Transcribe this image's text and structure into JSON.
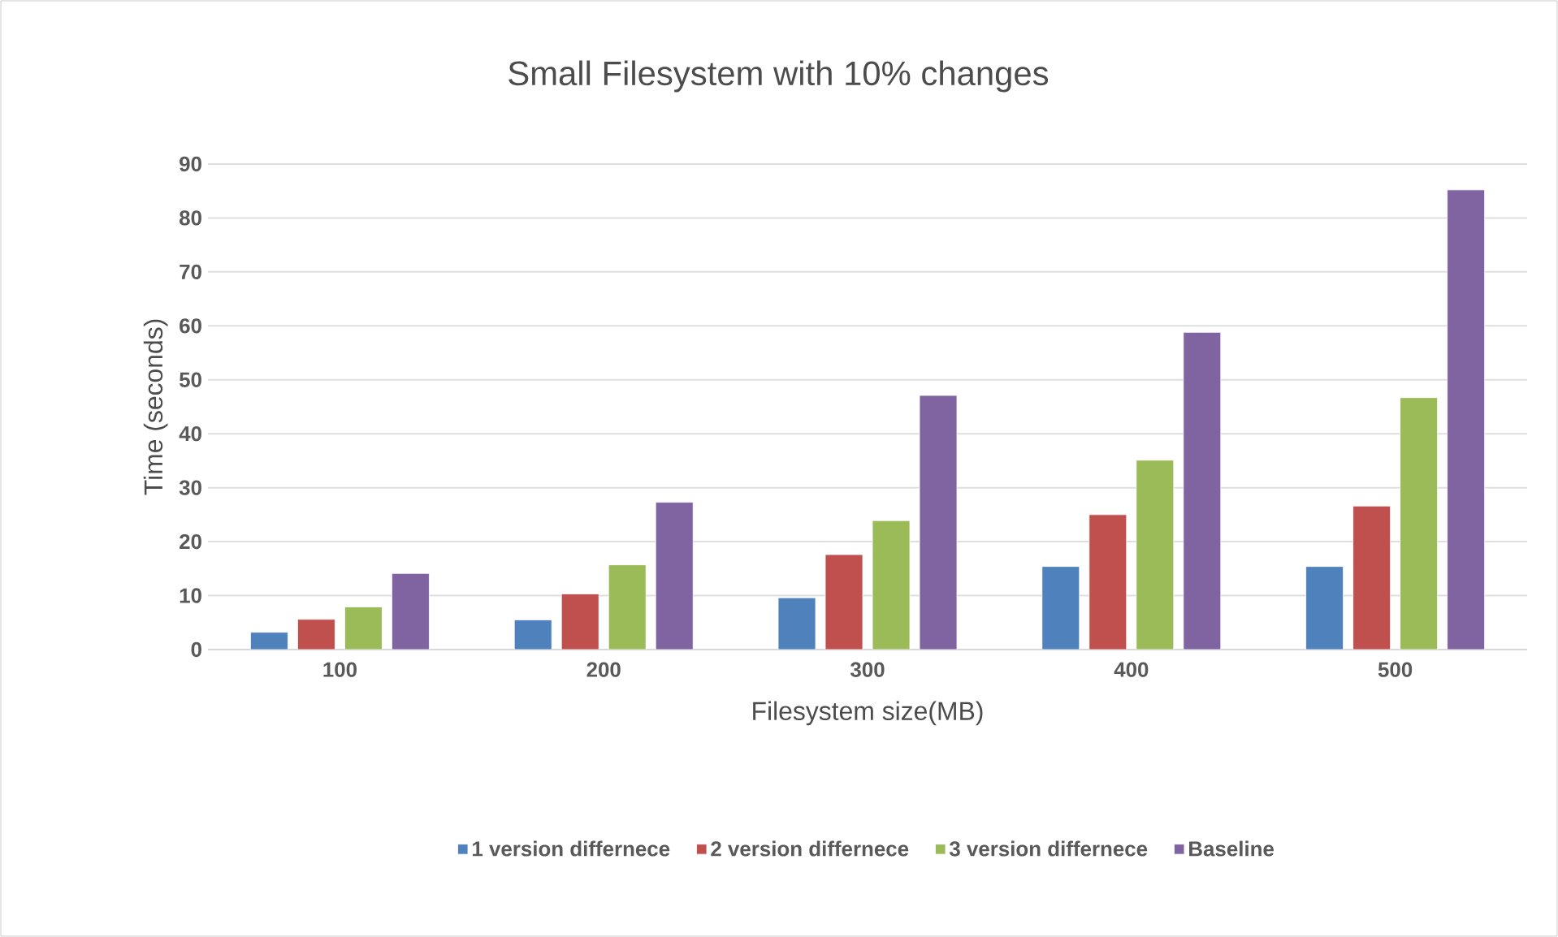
{
  "chart_data": {
    "type": "bar",
    "title": "Small Filesystem with 10% changes",
    "xlabel": "Filesystem size(MB)",
    "ylabel": "Time (seconds)",
    "categories": [
      "100",
      "200",
      "300",
      "400",
      "500"
    ],
    "series": [
      {
        "name": "1 version differnece",
        "color": "#4f81bd",
        "values": [
          3.2,
          5.5,
          9.6,
          15.4,
          15.4
        ]
      },
      {
        "name": "2 version differnece",
        "color": "#c0504d",
        "values": [
          5.6,
          10.3,
          17.6,
          25.0,
          26.6
        ]
      },
      {
        "name": "3 version differnece",
        "color": "#9bbb59",
        "values": [
          7.9,
          15.7,
          23.9,
          35.1,
          46.7
        ]
      },
      {
        "name": "Baseline",
        "color": "#8064a2",
        "values": [
          14.1,
          27.3,
          47.1,
          58.8,
          85.2
        ]
      }
    ],
    "ylim": [
      0,
      90
    ],
    "yticks": [
      0,
      10,
      20,
      30,
      40,
      50,
      60,
      70,
      80,
      90
    ],
    "grid": "y",
    "legend": "bottom"
  }
}
